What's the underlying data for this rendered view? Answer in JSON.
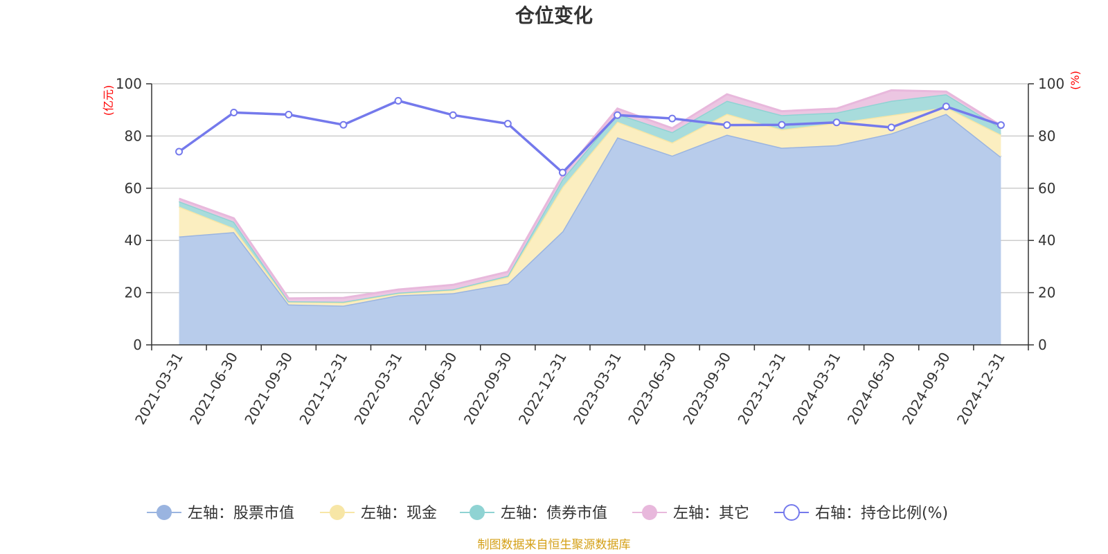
{
  "chart_data": {
    "type": "area",
    "title": "仓位变化",
    "left_axis_unit": "(亿元)",
    "right_axis_unit": "(%)",
    "categories": [
      "2021-03-31",
      "2021-06-30",
      "2021-09-30",
      "2021-12-31",
      "2022-03-31",
      "2022-06-30",
      "2022-09-30",
      "2022-12-31",
      "2023-03-31",
      "2023-06-30",
      "2023-09-30",
      "2023-12-31",
      "2024-03-31",
      "2024-06-30",
      "2024-09-30",
      "2024-12-31"
    ],
    "ylim_left": [
      0,
      100
    ],
    "ylim_right": [
      0,
      100
    ],
    "yticks": [
      0,
      20,
      40,
      60,
      80,
      100
    ],
    "grid": true,
    "stacked": true,
    "series": [
      {
        "name": "左轴：股票市值",
        "axis": "left",
        "type": "area",
        "color": "#9ab4e0",
        "fill": "#b8cceb",
        "values": [
          41.5,
          43.2,
          15.5,
          15.0,
          19.0,
          19.8,
          23.5,
          43.5,
          79.5,
          72.5,
          80.5,
          75.5,
          76.5,
          81.0,
          88.5,
          72.0
        ]
      },
      {
        "name": "左轴：现金",
        "axis": "left",
        "type": "area",
        "color": "#f7e6a6",
        "fill": "#fbeec0",
        "values": [
          11.5,
          1.5,
          1.0,
          1.2,
          0.8,
          1.2,
          2.5,
          17.0,
          6.0,
          5.0,
          8.0,
          7.0,
          8.5,
          7.0,
          2.5,
          8.5
        ]
      },
      {
        "name": "左轴：债券市值",
        "axis": "left",
        "type": "area",
        "color": "#8fd3d3",
        "fill": "#a8dcdc",
        "values": [
          2.0,
          2.5,
          0.2,
          0.3,
          0.2,
          0.3,
          0.5,
          3.0,
          3.0,
          4.0,
          5.0,
          5.5,
          4.0,
          5.5,
          5.0,
          2.5
        ]
      },
      {
        "name": "左轴：其它",
        "axis": "left",
        "type": "area",
        "color": "#e8b8dc",
        "fill": "#ecc6e2",
        "values": [
          1.0,
          1.3,
          1.1,
          1.5,
          1.2,
          1.7,
          1.5,
          1.5,
          2.0,
          1.5,
          2.5,
          1.5,
          1.5,
          4.0,
          1.0,
          1.0
        ]
      },
      {
        "name": "右轴：持仓比例(%)",
        "axis": "right",
        "type": "line",
        "color": "#7479ec",
        "values": [
          74.0,
          89.0,
          88.2,
          84.3,
          93.5,
          88.0,
          84.7,
          66.0,
          88.0,
          86.7,
          84.2,
          84.3,
          85.2,
          83.3,
          91.3,
          84.2
        ]
      }
    ],
    "legend_position": "bottom",
    "source_note": "制图数据来自恒生聚源数据库",
    "colors": {
      "axis": "#333333",
      "grid": "#cccccc",
      "unit": "#ff0000",
      "source": "#d4a017"
    }
  }
}
